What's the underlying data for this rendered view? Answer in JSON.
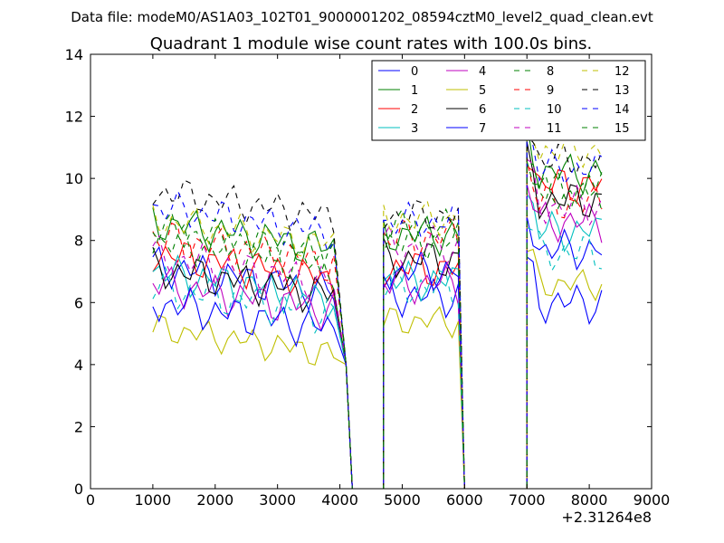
{
  "chart_data": {
    "type": "line",
    "suptitle": "Data file: modeM0/AS1A03_102T01_9000001202_08594cztM0_level2_quad_clean.evt",
    "title": "Quadrant 1 module wise count rates with 100.0s bins.",
    "xlabel": "",
    "ylabel": "",
    "x_offset_label": "+2.31264e8",
    "xlim": [
      0,
      9000
    ],
    "ylim": [
      0,
      14
    ],
    "x_ticks": [
      0,
      1000,
      2000,
      3000,
      4000,
      5000,
      6000,
      7000,
      8000,
      9000
    ],
    "y_ticks": [
      0,
      2,
      4,
      6,
      8,
      10,
      12,
      14
    ],
    "legend_position": "top-right",
    "seg_starts": [
      1000,
      4700,
      7000
    ],
    "seg_lengths": [
      30,
      13,
      13
    ],
    "gap_points": [
      [
        4100,
        4
      ],
      [
        4200,
        0
      ],
      [
        4700,
        0
      ],
      [
        6000,
        0
      ],
      [
        7000,
        0
      ]
    ],
    "series": [
      {
        "name": "0",
        "color": "#0000ff",
        "dash": false,
        "base": [
          7.2,
          6.2,
          6.0
        ],
        "amp": 0.45
      },
      {
        "name": "1",
        "color": "#008000",
        "dash": false,
        "base": [
          8.6,
          8.2,
          10.2
        ],
        "amp": 0.45
      },
      {
        "name": "2",
        "color": "#ff0000",
        "dash": false,
        "base": [
          7.6,
          7.1,
          9.8
        ],
        "amp": 0.45
      },
      {
        "name": "3",
        "color": "#00bfbf",
        "dash": false,
        "base": [
          7.0,
          6.7,
          8.3
        ],
        "amp": 0.45
      },
      {
        "name": "4",
        "color": "#bf00bf",
        "dash": false,
        "base": [
          6.6,
          6.6,
          8.6
        ],
        "amp": 0.45
      },
      {
        "name": "5",
        "color": "#bfbf00",
        "dash": false,
        "base": [
          5.2,
          5.4,
          6.6
        ],
        "amp": 0.35
      },
      {
        "name": "6",
        "color": "#000000",
        "dash": false,
        "base": [
          7.1,
          7.4,
          9.3
        ],
        "amp": 0.45
      },
      {
        "name": "7",
        "color": "#0000ff",
        "dash": false,
        "base": [
          6.0,
          7.0,
          7.7
        ],
        "amp": 0.45
      },
      {
        "name": "8",
        "color": "#008000",
        "dash": true,
        "base": [
          8.0,
          8.0,
          9.6
        ],
        "amp": 0.45
      },
      {
        "name": "9",
        "color": "#ff0000",
        "dash": true,
        "base": [
          8.1,
          8.1,
          9.2
        ],
        "amp": 0.45
      },
      {
        "name": "10",
        "color": "#00bfbf",
        "dash": true,
        "base": [
          6.5,
          6.5,
          7.6
        ],
        "amp": 0.45
      },
      {
        "name": "11",
        "color": "#bf00bf",
        "dash": true,
        "base": [
          7.5,
          7.8,
          9.1
        ],
        "amp": 0.45
      },
      {
        "name": "12",
        "color": "#bfbf00",
        "dash": true,
        "base": [
          8.7,
          8.7,
          10.9
        ],
        "amp": 0.4
      },
      {
        "name": "13",
        "color": "#000000",
        "dash": true,
        "base": [
          9.6,
          8.8,
          10.6
        ],
        "amp": 0.4
      },
      {
        "name": "14",
        "color": "#0000ff",
        "dash": true,
        "base": [
          9.1,
          8.6,
          10.3
        ],
        "amp": 0.4
      },
      {
        "name": "15",
        "color": "#008000",
        "dash": true,
        "base": [
          8.4,
          8.4,
          9.5
        ],
        "amp": 0.4
      }
    ]
  }
}
